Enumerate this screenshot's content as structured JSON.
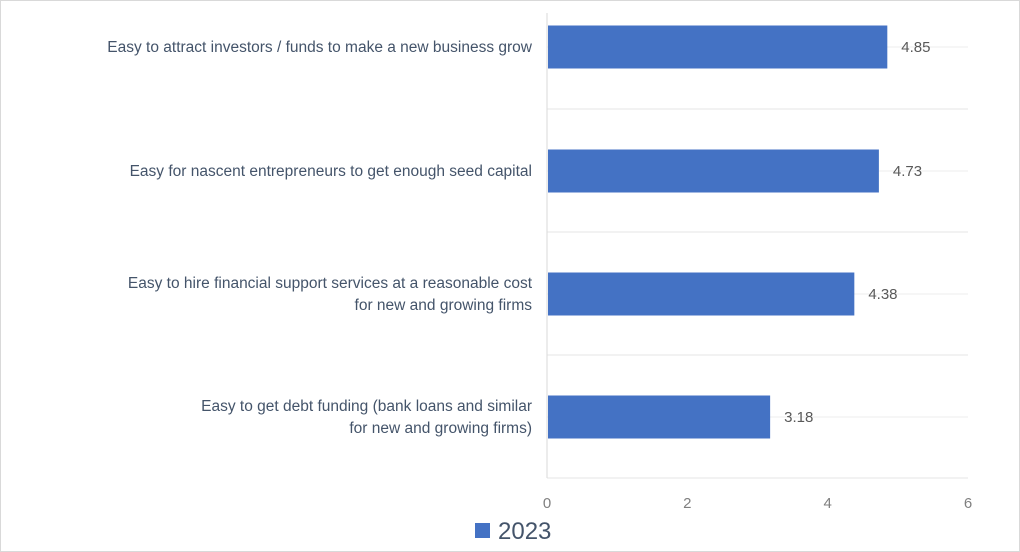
{
  "chart_data": {
    "type": "bar",
    "orientation": "horizontal",
    "categories": [
      [
        "Easy to attract investors / funds to make a new business grow"
      ],
      [
        "Easy for nascent entrepreneurs to get enough seed capital"
      ],
      [
        "Easy to hire financial support services at a reasonable cost",
        "for new and growing firms"
      ],
      [
        "Easy to get debt funding (bank loans and similar",
        "for new and growing firms)"
      ]
    ],
    "series": [
      {
        "name": "2023",
        "values": [
          4.85,
          4.73,
          4.38,
          3.18
        ],
        "color": "#4472c4"
      }
    ],
    "value_labels": [
      "4.85",
      "4.73",
      "4.38",
      "3.18"
    ],
    "xlim": [
      0,
      6
    ],
    "xticks": [
      0,
      2,
      4,
      6
    ],
    "grid": true,
    "legend_position": "bottom"
  }
}
